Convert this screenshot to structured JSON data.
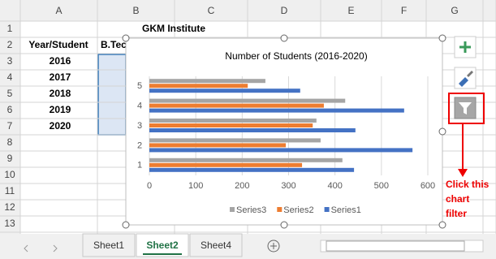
{
  "spreadsheet": {
    "column_headers": [
      "A",
      "B",
      "C",
      "D",
      "E",
      "F",
      "G"
    ],
    "row_headers": [
      "1",
      "2",
      "3",
      "4",
      "5",
      "6",
      "7",
      "8",
      "9",
      "10",
      "11",
      "12",
      "13"
    ],
    "title": "GKM Institute",
    "header": [
      "Year/Student",
      "B.Tec"
    ],
    "years": [
      "2016",
      "2017",
      "2018",
      "2019",
      "2020"
    ]
  },
  "chart_data": {
    "type": "bar",
    "orientation": "horizontal",
    "title": "Number of Students (2016-2020)",
    "categories": [
      "1",
      "2",
      "3",
      "4",
      "5"
    ],
    "series": [
      {
        "name": "Series3",
        "color": "#a5a5a5",
        "values": [
          416,
          369,
          360,
          422,
          250
        ]
      },
      {
        "name": "Series2",
        "color": "#ed7d31",
        "values": [
          329,
          294,
          352,
          376,
          212
        ]
      },
      {
        "name": "Series1",
        "color": "#4472c4",
        "values": [
          441,
          567,
          444,
          549,
          325
        ]
      }
    ],
    "xlim": [
      0,
      600
    ],
    "xticks": [
      0,
      100,
      200,
      300,
      400,
      500,
      600
    ],
    "grid": true,
    "legend": "bottom"
  },
  "annotation": [
    "Click this",
    "chart",
    "filter"
  ],
  "tabs": {
    "names": [
      "Sheet1",
      "Sheet2",
      "Sheet4"
    ],
    "active": 1
  }
}
